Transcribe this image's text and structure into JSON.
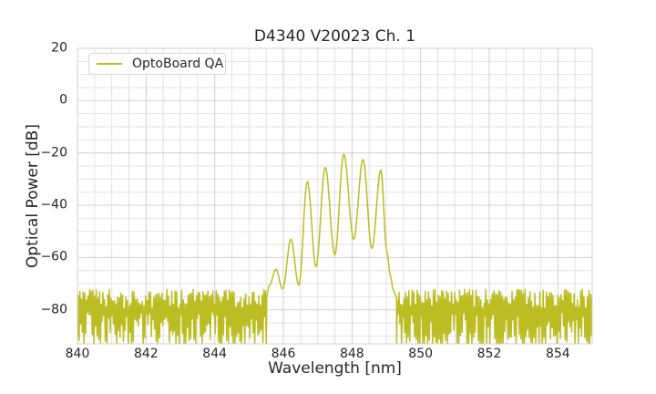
{
  "figure": {
    "kind": "matplotlib-style line plot",
    "background": "#ffffff"
  },
  "colors": {
    "line": "#bcbd22",
    "grid_major": "#d0d0d0",
    "grid_minor": "#e2e2e2",
    "frame": "#cfcfcf",
    "text": "#262626",
    "background": "#ffffff"
  },
  "chart_data": {
    "type": "line",
    "title": "D4340 V20023 Ch. 1",
    "xlabel": "Wavelength [nm]",
    "ylabel": "Optical Power [dB]",
    "xlim": [
      840,
      855
    ],
    "ylim": [
      -93,
      20
    ],
    "xticks": [
      840,
      842,
      844,
      846,
      848,
      850,
      852,
      854
    ],
    "yticks": [
      20,
      0,
      -20,
      -40,
      -60,
      -80
    ],
    "minor_x_step": 0.5,
    "minor_y_step": 5,
    "grid": "major and minor gridlines on, light gray, no dark spines",
    "legend_position": "upper left",
    "series": [
      {
        "name": "OptoBoard QA",
        "color": "#bcbd22",
        "description": "Optical spectrum: noise floor near -80 dB with a multi-mode emission peak between ~845.5 and ~849.3 nm",
        "noise_floor_dB": -80,
        "noise_regions": [
          [
            840.0,
            845.5
          ],
          [
            849.3,
            855.0
          ]
        ],
        "noise_top_range_dB": [
          -79.5,
          -72.3
        ],
        "noise_bottom_range_dB": [
          -93,
          -81
        ],
        "peaks": [
          {
            "wavelength": 845.78,
            "power": -64.5
          },
          {
            "wavelength": 846.22,
            "power": -53.0
          },
          {
            "wavelength": 846.7,
            "power": -31.0
          },
          {
            "wavelength": 847.22,
            "power": -25.5
          },
          {
            "wavelength": 847.76,
            "power": -20.5
          },
          {
            "wavelength": 848.32,
            "power": -22.5
          },
          {
            "wavelength": 848.84,
            "power": -26.5
          }
        ],
        "envelope_points": [
          [
            845.5,
            -75.0
          ],
          [
            845.6,
            -70.5
          ],
          [
            845.78,
            -64.5
          ],
          [
            845.98,
            -72.0
          ],
          [
            846.22,
            -53.0
          ],
          [
            846.45,
            -70.5
          ],
          [
            846.7,
            -31.0
          ],
          [
            846.95,
            -63.5
          ],
          [
            847.22,
            -25.5
          ],
          [
            847.5,
            -59.0
          ],
          [
            847.76,
            -20.5
          ],
          [
            848.05,
            -53.0
          ],
          [
            848.32,
            -22.5
          ],
          [
            848.58,
            -56.5
          ],
          [
            848.84,
            -26.5
          ],
          [
            849.02,
            -58.0
          ],
          [
            849.12,
            -67.0
          ],
          [
            849.2,
            -72.5
          ],
          [
            849.3,
            -75.0
          ]
        ]
      }
    ]
  }
}
